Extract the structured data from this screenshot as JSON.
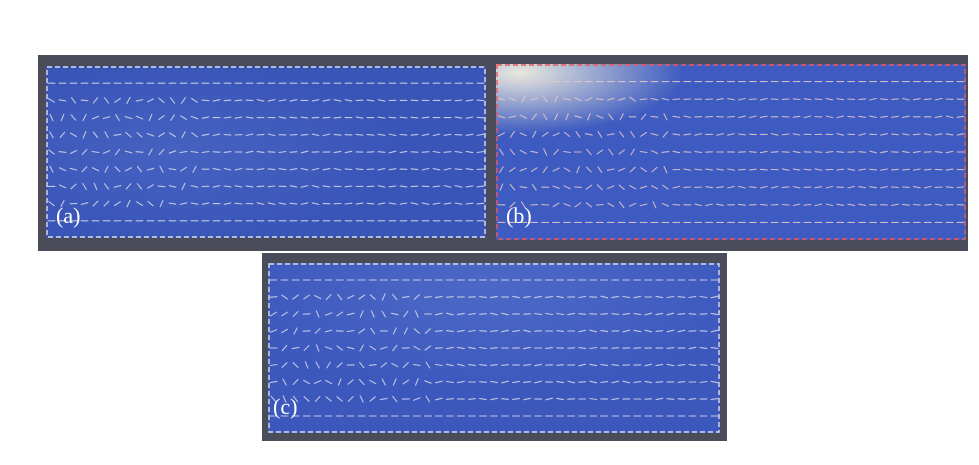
{
  "panels": [
    {
      "id": "a",
      "label": "(a)",
      "base_color": "#3a55b8",
      "highlight_color": "#5a7ad0",
      "border_color": "#d9dce6",
      "glyph_color": "#d8dbe8"
    },
    {
      "id": "b",
      "label": "(b)",
      "base_color": "#3d5bc0",
      "highlight_color": "#f2f0e0",
      "border_color": "#e85a5a",
      "glyph_color": "#e8c9c9"
    },
    {
      "id": "c",
      "label": "(c)",
      "base_color": "#3d58bd",
      "highlight_color": "#6a88d8",
      "border_color": "#d9dce6",
      "glyph_color": "#d8dbe8"
    }
  ]
}
